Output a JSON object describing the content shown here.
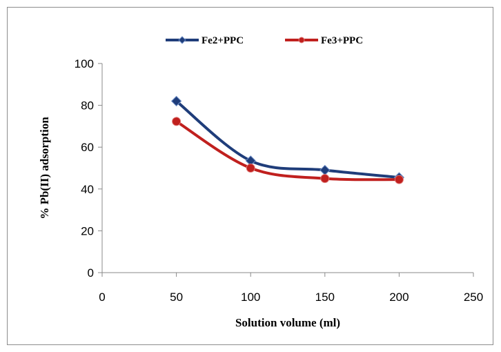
{
  "chart_data": {
    "type": "line",
    "title": "",
    "xlabel": "Solution volume (ml)",
    "ylabel": "% Pb(II) adsorption",
    "xlim": [
      0,
      250
    ],
    "ylim": [
      0,
      100
    ],
    "x_ticks": [
      0,
      50,
      100,
      150,
      200,
      250
    ],
    "y_ticks": [
      0,
      20,
      40,
      60,
      80,
      100
    ],
    "grid": false,
    "legend_position": "top",
    "smooth": true,
    "series": [
      {
        "name": "Fe2+PPC",
        "x": [
          50,
          100,
          150,
          200
        ],
        "y": [
          82,
          53.5,
          49,
          45.5
        ],
        "color": "#1f3d7a",
        "marker": "diamond"
      },
      {
        "name": "Fe3+PPC",
        "x": [
          50,
          100,
          150,
          200
        ],
        "y": [
          72.3,
          50,
          45,
          44.5
        ],
        "color": "#c0201e",
        "marker": "circle"
      }
    ]
  }
}
